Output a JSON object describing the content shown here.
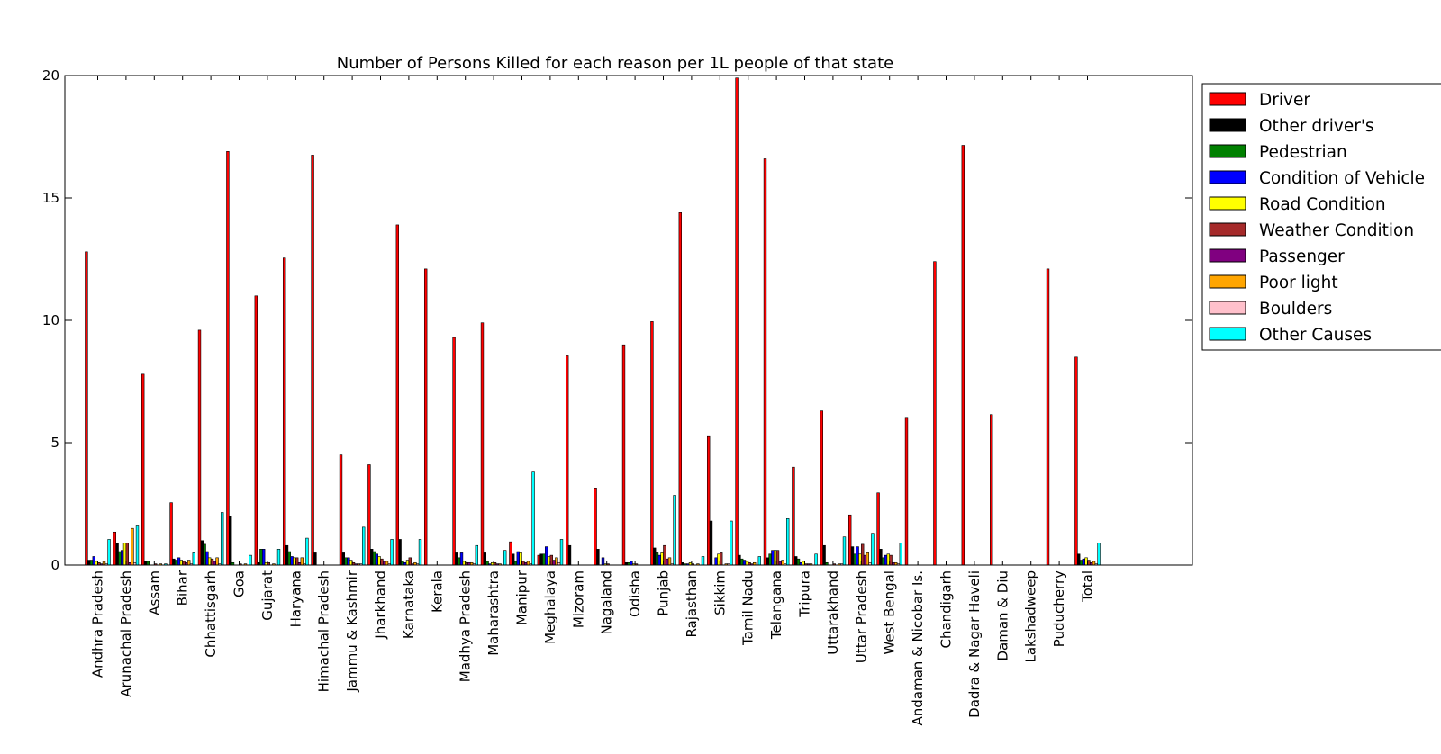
{
  "chart_data": {
    "type": "bar",
    "title": "Number of Persons Killed for each reason per 1L people of that state",
    "xlabel": "",
    "ylabel": "",
    "ylim": [
      0,
      20
    ],
    "yticks": [
      "0",
      "5",
      "10",
      "15",
      "20"
    ],
    "grid": false,
    "legend_position": "top-right (outside plot)",
    "categories": [
      "Andhra Pradesh",
      "Arunachal Pradesh",
      "Assam",
      "Bihar",
      "Chhattisgarh",
      "Goa",
      "Gujarat",
      "Haryana",
      "Himachal Pradesh",
      "Jammu & Kashmir",
      "Jharkhand",
      "Karnataka",
      "Kerala",
      "Madhya Pradesh",
      "Maharashtra",
      "Manipur",
      "Meghalaya",
      "Mizoram",
      "Nagaland",
      "Odisha",
      "Punjab",
      "Rajasthan",
      "Sikkim",
      "Tamil Nadu",
      "Telangana",
      "Tripura",
      "Uttarakhand",
      "Uttar Pradesh",
      "West Bengal",
      "Andaman & Nicobar Is.",
      "Chandigarh",
      "Dadra & Nagar Haveli",
      "Daman & Diu",
      "Lakshadweep",
      "Puducherry",
      "Total"
    ],
    "series": [
      {
        "name": "Driver",
        "color": "#ff0000",
        "values": [
          12.8,
          1.35,
          7.8,
          2.55,
          9.6,
          16.9,
          11.0,
          12.55,
          16.75,
          4.5,
          4.1,
          13.9,
          12.1,
          9.3,
          9.9,
          0.95,
          0.4,
          8.55,
          3.15,
          9.0,
          9.95,
          14.4,
          5.25,
          19.9,
          16.6,
          4.0,
          6.3,
          2.05,
          2.95,
          6.0,
          12.4,
          17.15,
          6.15,
          0.0,
          12.1,
          8.5
        ]
      },
      {
        "name": "Other driver's",
        "color": "#000000",
        "values": [
          0.2,
          0.9,
          0.15,
          0.25,
          1.0,
          2.0,
          0.1,
          0.8,
          0.5,
          0.5,
          0.65,
          1.05,
          0.0,
          0.5,
          0.5,
          0.45,
          0.45,
          0.8,
          0.65,
          0.1,
          0.7,
          0.1,
          1.8,
          0.4,
          0.3,
          0.35,
          0.8,
          0.75,
          0.65,
          0.0,
          0.0,
          0.0,
          0.0,
          0.0,
          0.0,
          0.45
        ]
      },
      {
        "name": "Pedestrian",
        "color": "#008000",
        "values": [
          0.2,
          0.55,
          0.15,
          0.2,
          0.85,
          0.1,
          0.65,
          0.55,
          0.0,
          0.3,
          0.55,
          0.15,
          0.0,
          0.3,
          0.15,
          0.15,
          0.45,
          0.0,
          0.0,
          0.1,
          0.5,
          0.05,
          0.0,
          0.25,
          0.45,
          0.25,
          0.1,
          0.45,
          0.3,
          0.0,
          0.0,
          0.0,
          0.0,
          0.0,
          0.0,
          0.2
        ]
      },
      {
        "name": "Condition of Vehicle",
        "color": "#0000ff",
        "values": [
          0.35,
          0.6,
          0.0,
          0.3,
          0.55,
          0.0,
          0.65,
          0.35,
          0.0,
          0.3,
          0.45,
          0.1,
          0.0,
          0.5,
          0.05,
          0.55,
          0.75,
          0.0,
          0.3,
          0.15,
          0.4,
          0.05,
          0.3,
          0.2,
          0.6,
          0.1,
          0.0,
          0.75,
          0.4,
          0.0,
          0.0,
          0.0,
          0.0,
          0.0,
          0.0,
          0.25
        ]
      },
      {
        "name": "Road Condition",
        "color": "#ffff00",
        "values": [
          0.15,
          0.9,
          0.0,
          0.2,
          0.3,
          0.0,
          0.1,
          0.3,
          0.0,
          0.2,
          0.35,
          0.2,
          0.0,
          0.15,
          0.1,
          0.5,
          0.35,
          0.0,
          0.05,
          0.05,
          0.5,
          0.1,
          0.45,
          0.15,
          0.6,
          0.15,
          0.0,
          0.45,
          0.45,
          0.0,
          0.0,
          0.0,
          0.0,
          0.0,
          0.0,
          0.3
        ]
      },
      {
        "name": "Weather Condition",
        "color": "#a52a2a",
        "values": [
          0.1,
          0.9,
          0.05,
          0.15,
          0.25,
          0.05,
          0.1,
          0.3,
          0.0,
          0.1,
          0.25,
          0.3,
          0.0,
          0.1,
          0.1,
          0.15,
          0.4,
          0.0,
          0.05,
          0.05,
          0.8,
          0.05,
          0.5,
          0.1,
          0.6,
          0.05,
          0.05,
          0.85,
          0.4,
          0.0,
          0.0,
          0.0,
          0.0,
          0.0,
          0.0,
          0.2
        ]
      },
      {
        "name": "Passenger",
        "color": "#800080",
        "values": [
          0.05,
          0.1,
          0.0,
          0.1,
          0.15,
          0.0,
          0.0,
          0.1,
          0.0,
          0.05,
          0.15,
          0.05,
          0.0,
          0.1,
          0.05,
          0.1,
          0.2,
          0.0,
          0.0,
          0.0,
          0.25,
          0.0,
          0.0,
          0.05,
          0.15,
          0.05,
          0.0,
          0.4,
          0.1,
          0.0,
          0.0,
          0.0,
          0.0,
          0.0,
          0.0,
          0.1
        ]
      },
      {
        "name": "Poor light",
        "color": "#ffa500",
        "values": [
          0.15,
          1.5,
          0.05,
          0.2,
          0.3,
          0.05,
          0.05,
          0.3,
          0.0,
          0.05,
          0.15,
          0.1,
          0.0,
          0.1,
          0.05,
          0.15,
          0.3,
          0.0,
          0.0,
          0.0,
          0.3,
          0.05,
          0.05,
          0.1,
          0.2,
          0.05,
          0.05,
          0.5,
          0.1,
          0.0,
          0.0,
          0.0,
          0.0,
          0.0,
          0.0,
          0.15
        ]
      },
      {
        "name": "Boulders",
        "color": "#ffc0cb",
        "values": [
          0.05,
          0.1,
          0.0,
          0.05,
          0.05,
          0.0,
          0.0,
          0.05,
          0.0,
          0.05,
          0.05,
          0.05,
          0.0,
          0.05,
          0.0,
          0.05,
          0.1,
          0.0,
          0.0,
          0.0,
          0.05,
          0.0,
          0.05,
          0.0,
          0.05,
          0.0,
          0.05,
          0.1,
          0.05,
          0.0,
          0.0,
          0.0,
          0.0,
          0.0,
          0.0,
          0.05
        ]
      },
      {
        "name": "Other Causes",
        "color": "#00ffff",
        "values": [
          1.05,
          1.6,
          0.05,
          0.5,
          2.15,
          0.4,
          0.65,
          1.1,
          0.0,
          1.55,
          1.05,
          1.05,
          0.0,
          0.8,
          0.6,
          3.8,
          1.05,
          0.0,
          0.0,
          0.0,
          2.85,
          0.35,
          1.8,
          0.35,
          1.9,
          0.45,
          1.15,
          1.3,
          0.9,
          0.0,
          0.0,
          0.0,
          0.0,
          0.0,
          0.0,
          0.9
        ]
      }
    ]
  }
}
